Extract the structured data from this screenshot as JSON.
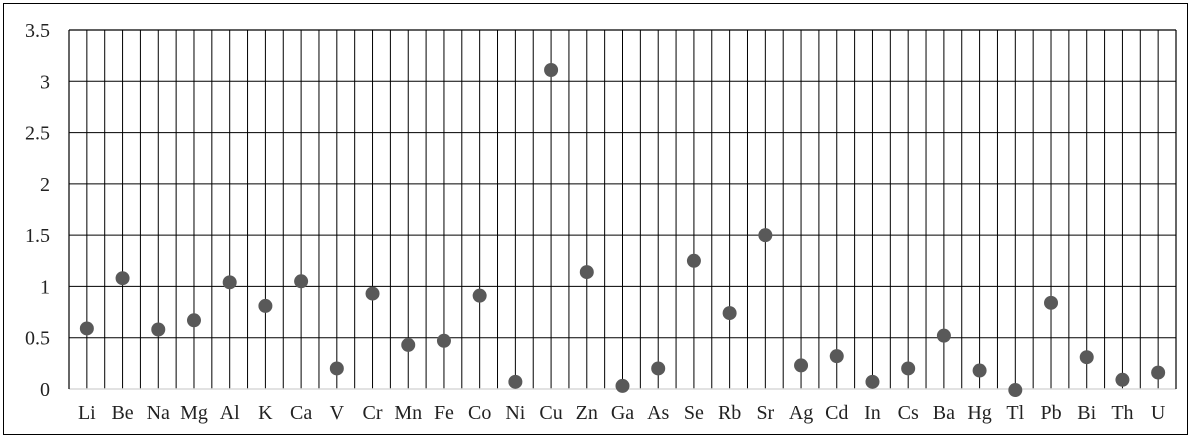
{
  "chart_data": {
    "type": "scatter",
    "title": "",
    "xlabel": "",
    "ylabel": "",
    "ylim": [
      0,
      3.5
    ],
    "yticks": [
      "0",
      "0.5",
      "1",
      "1.5",
      "2",
      "2.5",
      "3",
      "3.5"
    ],
    "ytick_values": [
      0,
      0.5,
      1,
      1.5,
      2,
      2.5,
      3,
      3.5
    ],
    "grid": true,
    "legend": "none",
    "marker_color": "#595959",
    "categories": [
      "Li",
      "Be",
      "Na",
      "Mg",
      "Al",
      "K",
      "Ca",
      "V",
      "Cr",
      "Mn",
      "Fe",
      "Co",
      "Ni",
      "Cu",
      "Zn",
      "Ga",
      "As",
      "Se",
      "Rb",
      "Sr",
      "Ag",
      "Cd",
      "In",
      "Cs",
      "Ba",
      "Hg",
      "Tl",
      "Pb",
      "Bi",
      "Th",
      "U"
    ],
    "values": [
      0.59,
      1.08,
      0.58,
      0.67,
      1.04,
      0.81,
      1.05,
      0.2,
      0.93,
      0.43,
      0.47,
      0.91,
      0.07,
      3.11,
      1.14,
      0.03,
      0.2,
      1.25,
      0.74,
      1.5,
      0.23,
      0.32,
      0.07,
      0.2,
      0.52,
      0.18,
      -0.01,
      0.84,
      0.31,
      0.09,
      0.16
    ]
  }
}
